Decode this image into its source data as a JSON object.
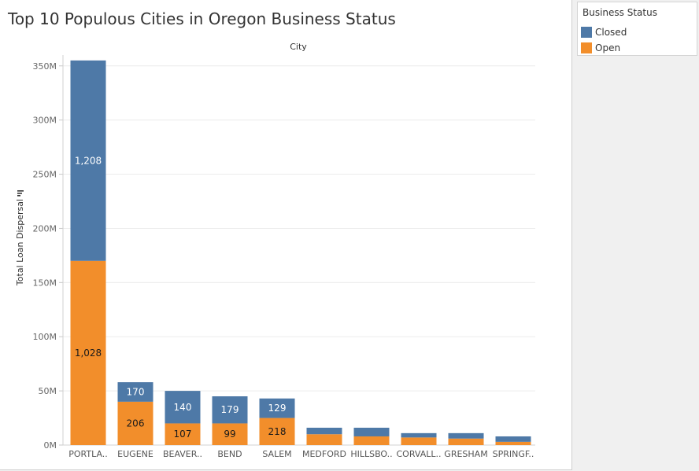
{
  "page": {
    "title": "Top 10 Populous Cities in Oregon Business Status"
  },
  "legend": {
    "title": "Business Status",
    "items": [
      {
        "label": "Closed",
        "color": "#4e79a7"
      },
      {
        "label": "Open",
        "color": "#f28e2b"
      }
    ]
  },
  "chart_data": {
    "type": "bar",
    "stacked": true,
    "title": "Top 10 Populous Cities in Oregon Business Status",
    "xlabel": "City",
    "ylabel": "Total Loan Dispersal",
    "ylim": [
      0,
      360
    ],
    "yticks": [
      0,
      50,
      100,
      150,
      200,
      250,
      300,
      350
    ],
    "ytick_labels": [
      "0M",
      "50M",
      "100M",
      "150M",
      "200M",
      "250M",
      "300M",
      "350M"
    ],
    "y_unit": "M",
    "grid": true,
    "categories": [
      "PORTLA..",
      "EUGENE",
      "BEAVER..",
      "BEND",
      "SALEM",
      "MEDFORD",
      "HILLSBO..",
      "CORVALL..",
      "GRESHAM",
      "SPRINGF.."
    ],
    "series": [
      {
        "name": "Open",
        "color": "#f28e2b",
        "values": [
          170,
          40,
          20,
          20,
          25,
          10,
          8,
          7,
          6,
          3
        ],
        "labels": [
          "1,028",
          "206",
          "107",
          "99",
          "218",
          "",
          "",
          "",
          "",
          ""
        ]
      },
      {
        "name": "Closed",
        "color": "#4e79a7",
        "values": [
          185,
          18,
          30,
          25,
          18,
          6,
          8,
          4,
          5,
          5
        ],
        "labels": [
          "1,208",
          "170",
          "140",
          "179",
          "129",
          "",
          "",
          "",
          "",
          ""
        ]
      }
    ]
  }
}
